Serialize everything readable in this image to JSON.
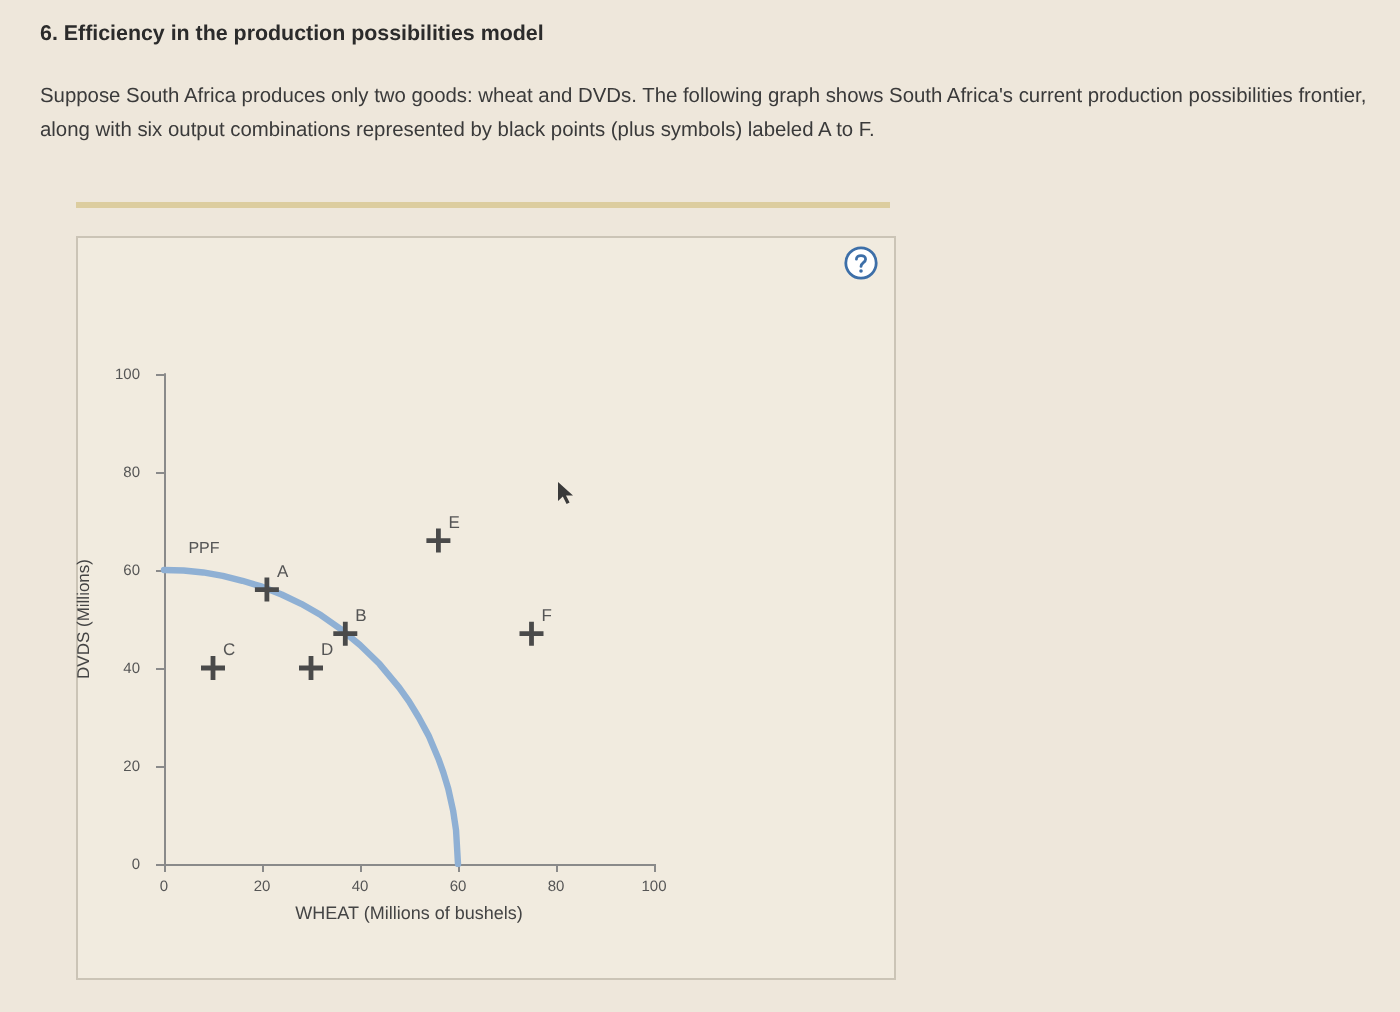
{
  "chart_data": {
    "type": "scatter",
    "title": "6. Efficiency in the production possibilities model",
    "subtitle": "Suppose South Africa produces only two goods: wheat and DVDs. The following graph shows South Africa's current production possibilities frontier, along with six output combinations represented by black points (plus symbols) labeled A to F.",
    "xlabel": "WHEAT (Millions of bushels)",
    "ylabel": "DVDS (Millions)",
    "xlim": [
      0,
      100
    ],
    "xticks": [
      0,
      20,
      40,
      60,
      80,
      100
    ],
    "ylim": [
      0,
      100
    ],
    "yticks": [
      0,
      20,
      40,
      60,
      80,
      100
    ],
    "grid": false,
    "legend": false,
    "marker": "cross",
    "series": [
      {
        "name": "PPF",
        "type": "line",
        "color": "#8fb0d4",
        "marker": "none",
        "line_style": "solid",
        "x": [
          0,
          4,
          8,
          12,
          16,
          20,
          24,
          28,
          32,
          36,
          40,
          44,
          48,
          50,
          52,
          54,
          56,
          57,
          58,
          59,
          59.6,
          60
        ],
        "values": [
          60,
          59.9,
          59.5,
          58.8,
          57.8,
          56.6,
          55,
          53.1,
          50.8,
          48,
          44.7,
          40.8,
          36,
          33.2,
          29.9,
          26.2,
          21.5,
          18.7,
          15.4,
          10.9,
          6.9,
          0
        ]
      },
      {
        "color": "#4a4a4a",
        "x": [
          21,
          37,
          10,
          30,
          56,
          75
        ],
        "values": [
          56,
          47,
          40,
          40,
          66,
          47
        ]
      }
    ],
    "annotations": [
      {
        "text": "A",
        "x": 21,
        "y": 56
      },
      {
        "text": "B",
        "x": 37,
        "y": 47
      },
      {
        "text": "C",
        "x": 10,
        "y": 40
      },
      {
        "text": "D",
        "x": 30,
        "y": 40
      },
      {
        "text": "E",
        "x": 56,
        "y": 66
      },
      {
        "text": "F",
        "x": 75,
        "y": 47
      }
    ]
  }
}
